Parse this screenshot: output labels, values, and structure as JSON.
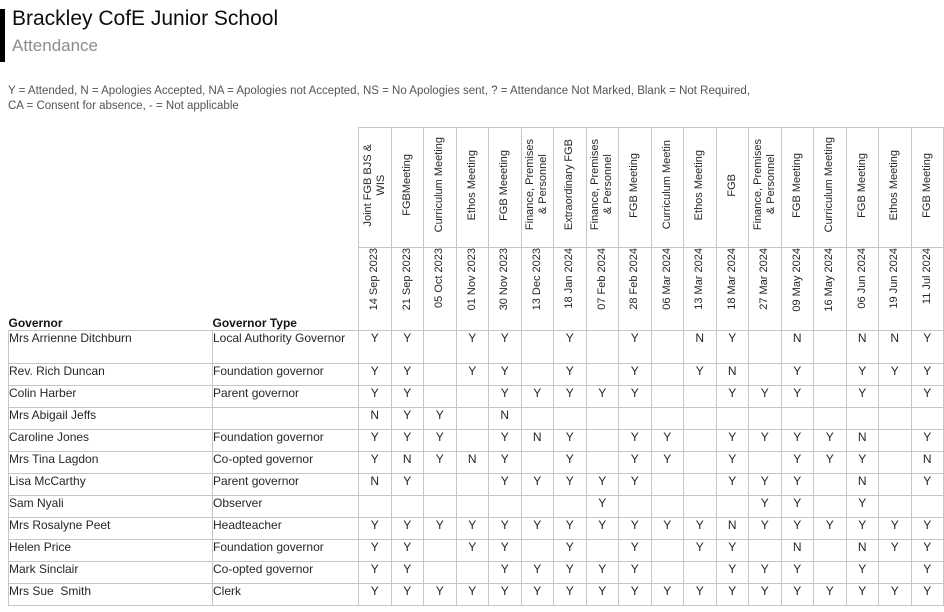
{
  "page": {
    "title": "Brackley CofE Junior School",
    "subtitle": "Attendance",
    "legend_line1": "Y = Attended, N = Apologies Accepted, NA = Apologies not Accepted, NS = No Apologies sent, ? = Attendance Not Marked, Blank = Not Required,",
    "legend_line2": "CA = Consent for absence, - = Not applicable"
  },
  "colors": {
    "accent_bar": "#000000",
    "title_text": "#0d0d0d",
    "subtitle_text": "#8c8c8c",
    "legend_text": "#545454",
    "table_text": "#262626",
    "grid_border": "#c6c6c6"
  },
  "table": {
    "row_headers": {
      "governor": "Governor",
      "governor_type": "Governor Type"
    },
    "columns": [
      {
        "meeting": "Joint FGB BJS &\nWIS",
        "date": "14 Sep 2023"
      },
      {
        "meeting": "FGBMeeting",
        "date": "21 Sep 2023"
      },
      {
        "meeting": "Curriculum Meeting",
        "date": "05 Oct 2023"
      },
      {
        "meeting": "Ethos Meeting",
        "date": "01 Nov 2023"
      },
      {
        "meeting": "FGB Meeeting",
        "date": "30 Nov 2023"
      },
      {
        "meeting": "Finance, Premises\n& Personnel",
        "date": "13 Dec 2023"
      },
      {
        "meeting": "Extraordinary FGB",
        "date": "18 Jan 2024"
      },
      {
        "meeting": "Finance, Premises\n& Personnel",
        "date": "07 Feb 2024"
      },
      {
        "meeting": "FGB Meeting",
        "date": "28 Feb 2024"
      },
      {
        "meeting": "Curriculum Meetin",
        "date": "06 Mar 2024"
      },
      {
        "meeting": "Ethos Meeting",
        "date": "13 Mar 2024"
      },
      {
        "meeting": "FGB",
        "date": "18 Mar 2024"
      },
      {
        "meeting": "Finance, Premises\n& Personnel",
        "date": "27 Mar 2024"
      },
      {
        "meeting": "FGB Meeting",
        "date": "09 May 2024"
      },
      {
        "meeting": "Curriculum Meeting",
        "date": "16 May 2024"
      },
      {
        "meeting": "FGB Meeting",
        "date": "06 Jun 2024"
      },
      {
        "meeting": "Ethos Meeting",
        "date": "19 Jun 2024"
      },
      {
        "meeting": "FGB Meeting",
        "date": "11 Jul 2024"
      }
    ],
    "rows": [
      {
        "governor": "Mrs Arrienne Ditchburn",
        "type": "Local Authority Governor",
        "marks": [
          "Y",
          "Y",
          "",
          "Y",
          "Y",
          "",
          "Y",
          "",
          "Y",
          "",
          "N",
          "Y",
          "",
          "N",
          "",
          "N",
          "N",
          "Y"
        ]
      },
      {
        "governor": "Rev. Rich Duncan",
        "type": "Foundation governor",
        "marks": [
          "Y",
          "Y",
          "",
          "Y",
          "Y",
          "",
          "Y",
          "",
          "Y",
          "",
          "Y",
          "N",
          "",
          "Y",
          "",
          "Y",
          "Y",
          "Y"
        ]
      },
      {
        "governor": "Colin Harber",
        "type": "Parent governor",
        "marks": [
          "Y",
          "Y",
          "",
          "",
          "Y",
          "Y",
          "Y",
          "Y",
          "Y",
          "",
          "",
          "Y",
          "Y",
          "Y",
          "",
          "Y",
          "",
          "Y"
        ]
      },
      {
        "governor": "Mrs Abigail Jeffs",
        "type": "",
        "marks": [
          "N",
          "Y",
          "Y",
          "",
          "N",
          "",
          "",
          "",
          "",
          "",
          "",
          "",
          "",
          "",
          "",
          "",
          "",
          ""
        ]
      },
      {
        "governor": "Caroline Jones",
        "type": "Foundation governor",
        "marks": [
          "Y",
          "Y",
          "Y",
          "",
          "Y",
          "N",
          "Y",
          "",
          "Y",
          "Y",
          "",
          "Y",
          "Y",
          "Y",
          "Y",
          "N",
          "",
          "Y"
        ]
      },
      {
        "governor": "Mrs Tina Lagdon",
        "type": "Co-opted governor",
        "marks": [
          "Y",
          "N",
          "Y",
          "N",
          "Y",
          "",
          "Y",
          "",
          "Y",
          "Y",
          "",
          "Y",
          "",
          "Y",
          "Y",
          "Y",
          "",
          "N"
        ]
      },
      {
        "governor": "Lisa McCarthy",
        "type": "Parent governor",
        "marks": [
          "N",
          "Y",
          "",
          "",
          "Y",
          "Y",
          "Y",
          "Y",
          "Y",
          "",
          "",
          "Y",
          "Y",
          "Y",
          "",
          "N",
          "",
          "Y"
        ]
      },
      {
        "governor": "Sam Nyali",
        "type": "Observer",
        "marks": [
          "",
          "",
          "",
          "",
          "",
          "",
          "",
          "Y",
          "",
          "",
          "",
          "",
          "Y",
          "Y",
          "",
          "Y",
          "",
          ""
        ]
      },
      {
        "governor": "Mrs Rosalyne Peet",
        "type": "Headteacher",
        "marks": [
          "Y",
          "Y",
          "Y",
          "Y",
          "Y",
          "Y",
          "Y",
          "Y",
          "Y",
          "Y",
          "Y",
          "N",
          "Y",
          "Y",
          "Y",
          "Y",
          "Y",
          "Y"
        ]
      },
      {
        "governor": "Helen Price",
        "type": "Foundation governor",
        "marks": [
          "Y",
          "Y",
          "",
          "Y",
          "Y",
          "",
          "Y",
          "",
          "Y",
          "",
          "Y",
          "Y",
          "",
          "N",
          "",
          "N",
          "Y",
          "Y"
        ]
      },
      {
        "governor": "Mark Sinclair",
        "type": "Co-opted governor",
        "marks": [
          "Y",
          "Y",
          "",
          "",
          "Y",
          "Y",
          "Y",
          "Y",
          "Y",
          "",
          "",
          "Y",
          "Y",
          "Y",
          "",
          "Y",
          "",
          "Y"
        ]
      },
      {
        "governor": "Mrs Sue  Smith",
        "type": "Clerk",
        "marks": [
          "Y",
          "Y",
          "Y",
          "Y",
          "Y",
          "Y",
          "Y",
          "Y",
          "Y",
          "Y",
          "Y",
          "Y",
          "Y",
          "Y",
          "Y",
          "Y",
          "Y",
          "Y"
        ]
      }
    ]
  }
}
